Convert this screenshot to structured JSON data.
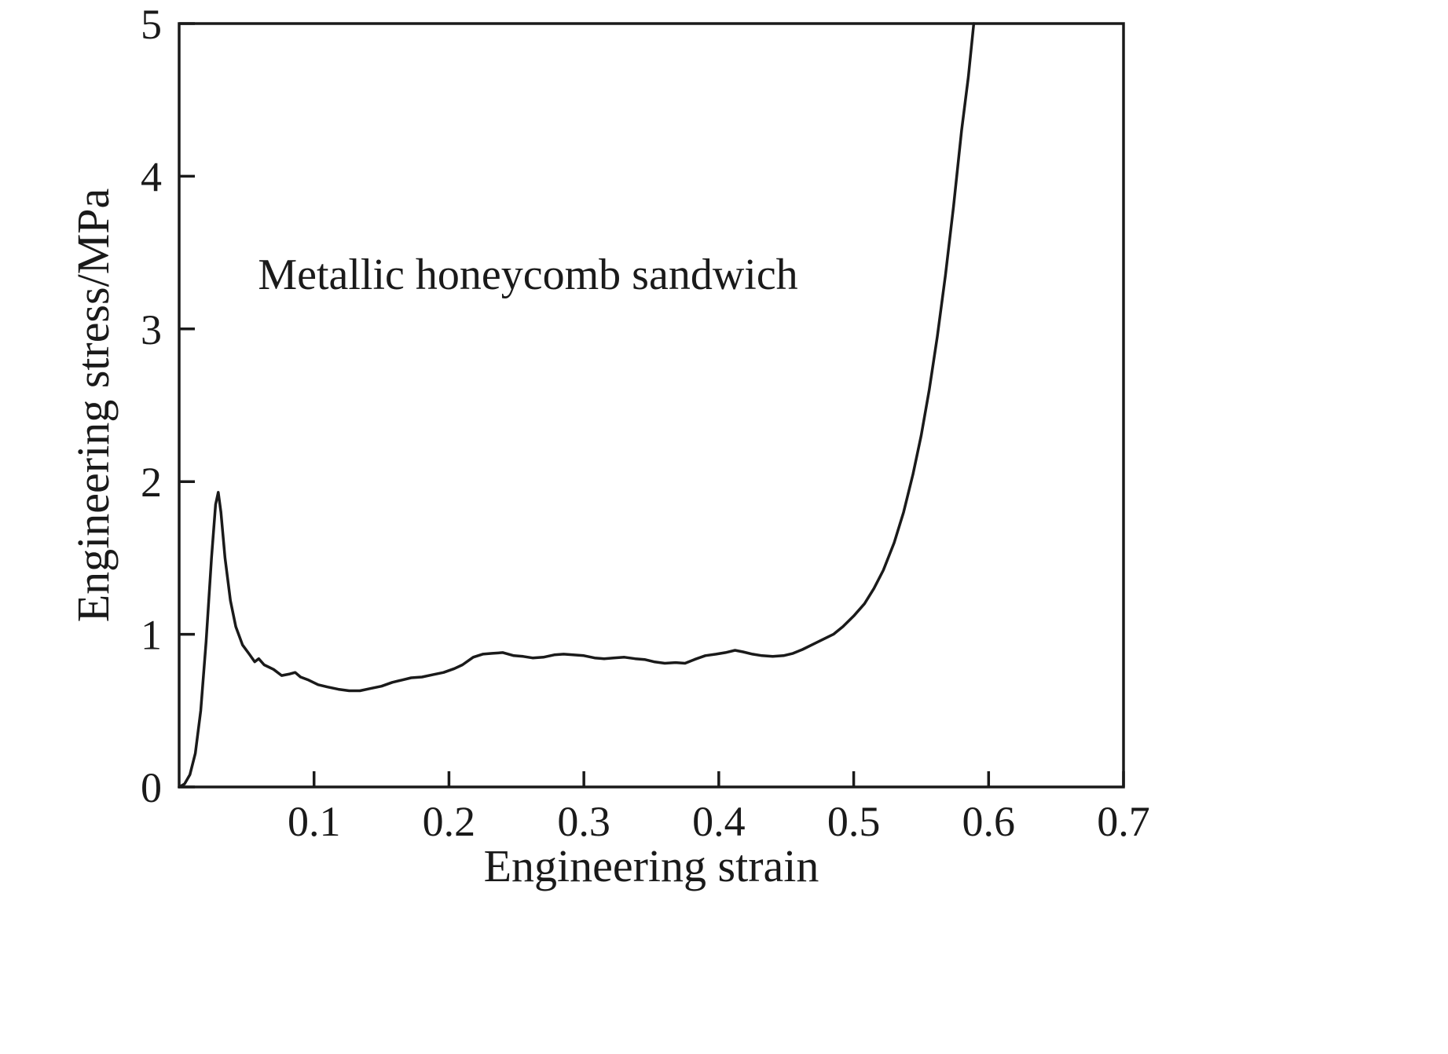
{
  "chart_data": {
    "type": "line",
    "annotation": "Metallic honeycomb sandwich",
    "xlabel": "Engineering strain",
    "ylabel": "Engineering stress/MPa",
    "xlim": [
      0,
      0.7
    ],
    "ylim": [
      0,
      5
    ],
    "x_ticks": [
      0.1,
      0.2,
      0.3,
      0.4,
      0.5,
      0.6,
      0.7
    ],
    "x_tick_labels": [
      "0.1",
      "0.2",
      "0.3",
      "0.4",
      "0.5",
      "0.6",
      "0.7"
    ],
    "y_ticks": [
      0,
      1,
      2,
      3,
      4,
      5
    ],
    "y_tick_labels": [
      "0",
      "1",
      "2",
      "3",
      "4",
      "5"
    ],
    "grid": false,
    "legend": "none",
    "line_color": "#1a1a1a",
    "background_color": "#ffffff",
    "series": [
      {
        "name": "Metallic honeycomb sandwich",
        "points": [
          [
            0.0,
            0.0
          ],
          [
            0.004,
            0.02
          ],
          [
            0.008,
            0.08
          ],
          [
            0.012,
            0.22
          ],
          [
            0.016,
            0.5
          ],
          [
            0.02,
            0.95
          ],
          [
            0.024,
            1.5
          ],
          [
            0.027,
            1.85
          ],
          [
            0.029,
            1.93
          ],
          [
            0.031,
            1.8
          ],
          [
            0.034,
            1.5
          ],
          [
            0.038,
            1.22
          ],
          [
            0.042,
            1.05
          ],
          [
            0.047,
            0.93
          ],
          [
            0.052,
            0.87
          ],
          [
            0.056,
            0.82
          ],
          [
            0.059,
            0.84
          ],
          [
            0.063,
            0.8
          ],
          [
            0.07,
            0.77
          ],
          [
            0.076,
            0.73
          ],
          [
            0.082,
            0.74
          ],
          [
            0.086,
            0.75
          ],
          [
            0.09,
            0.72
          ],
          [
            0.096,
            0.7
          ],
          [
            0.103,
            0.67
          ],
          [
            0.11,
            0.655
          ],
          [
            0.118,
            0.64
          ],
          [
            0.126,
            0.63
          ],
          [
            0.134,
            0.63
          ],
          [
            0.142,
            0.645
          ],
          [
            0.15,
            0.66
          ],
          [
            0.158,
            0.685
          ],
          [
            0.165,
            0.7
          ],
          [
            0.172,
            0.715
          ],
          [
            0.18,
            0.72
          ],
          [
            0.188,
            0.735
          ],
          [
            0.196,
            0.75
          ],
          [
            0.204,
            0.775
          ],
          [
            0.21,
            0.8
          ],
          [
            0.218,
            0.85
          ],
          [
            0.225,
            0.87
          ],
          [
            0.232,
            0.875
          ],
          [
            0.24,
            0.88
          ],
          [
            0.248,
            0.86
          ],
          [
            0.255,
            0.855
          ],
          [
            0.262,
            0.845
          ],
          [
            0.27,
            0.85
          ],
          [
            0.278,
            0.865
          ],
          [
            0.285,
            0.87
          ],
          [
            0.292,
            0.865
          ],
          [
            0.3,
            0.86
          ],
          [
            0.308,
            0.845
          ],
          [
            0.315,
            0.84
          ],
          [
            0.322,
            0.845
          ],
          [
            0.33,
            0.85
          ],
          [
            0.338,
            0.84
          ],
          [
            0.345,
            0.835
          ],
          [
            0.352,
            0.82
          ],
          [
            0.36,
            0.81
          ],
          [
            0.368,
            0.815
          ],
          [
            0.375,
            0.81
          ],
          [
            0.382,
            0.835
          ],
          [
            0.39,
            0.86
          ],
          [
            0.398,
            0.87
          ],
          [
            0.405,
            0.88
          ],
          [
            0.412,
            0.895
          ],
          [
            0.418,
            0.885
          ],
          [
            0.425,
            0.87
          ],
          [
            0.432,
            0.86
          ],
          [
            0.44,
            0.855
          ],
          [
            0.448,
            0.86
          ],
          [
            0.455,
            0.875
          ],
          [
            0.462,
            0.9
          ],
          [
            0.47,
            0.935
          ],
          [
            0.478,
            0.97
          ],
          [
            0.485,
            1.0
          ],
          [
            0.492,
            1.05
          ],
          [
            0.5,
            1.12
          ],
          [
            0.508,
            1.2
          ],
          [
            0.515,
            1.3
          ],
          [
            0.522,
            1.42
          ],
          [
            0.53,
            1.6
          ],
          [
            0.537,
            1.8
          ],
          [
            0.544,
            2.05
          ],
          [
            0.55,
            2.3
          ],
          [
            0.556,
            2.6
          ],
          [
            0.562,
            2.95
          ],
          [
            0.568,
            3.35
          ],
          [
            0.574,
            3.8
          ],
          [
            0.58,
            4.3
          ],
          [
            0.585,
            4.65
          ],
          [
            0.589,
            5.0
          ]
        ]
      }
    ]
  }
}
